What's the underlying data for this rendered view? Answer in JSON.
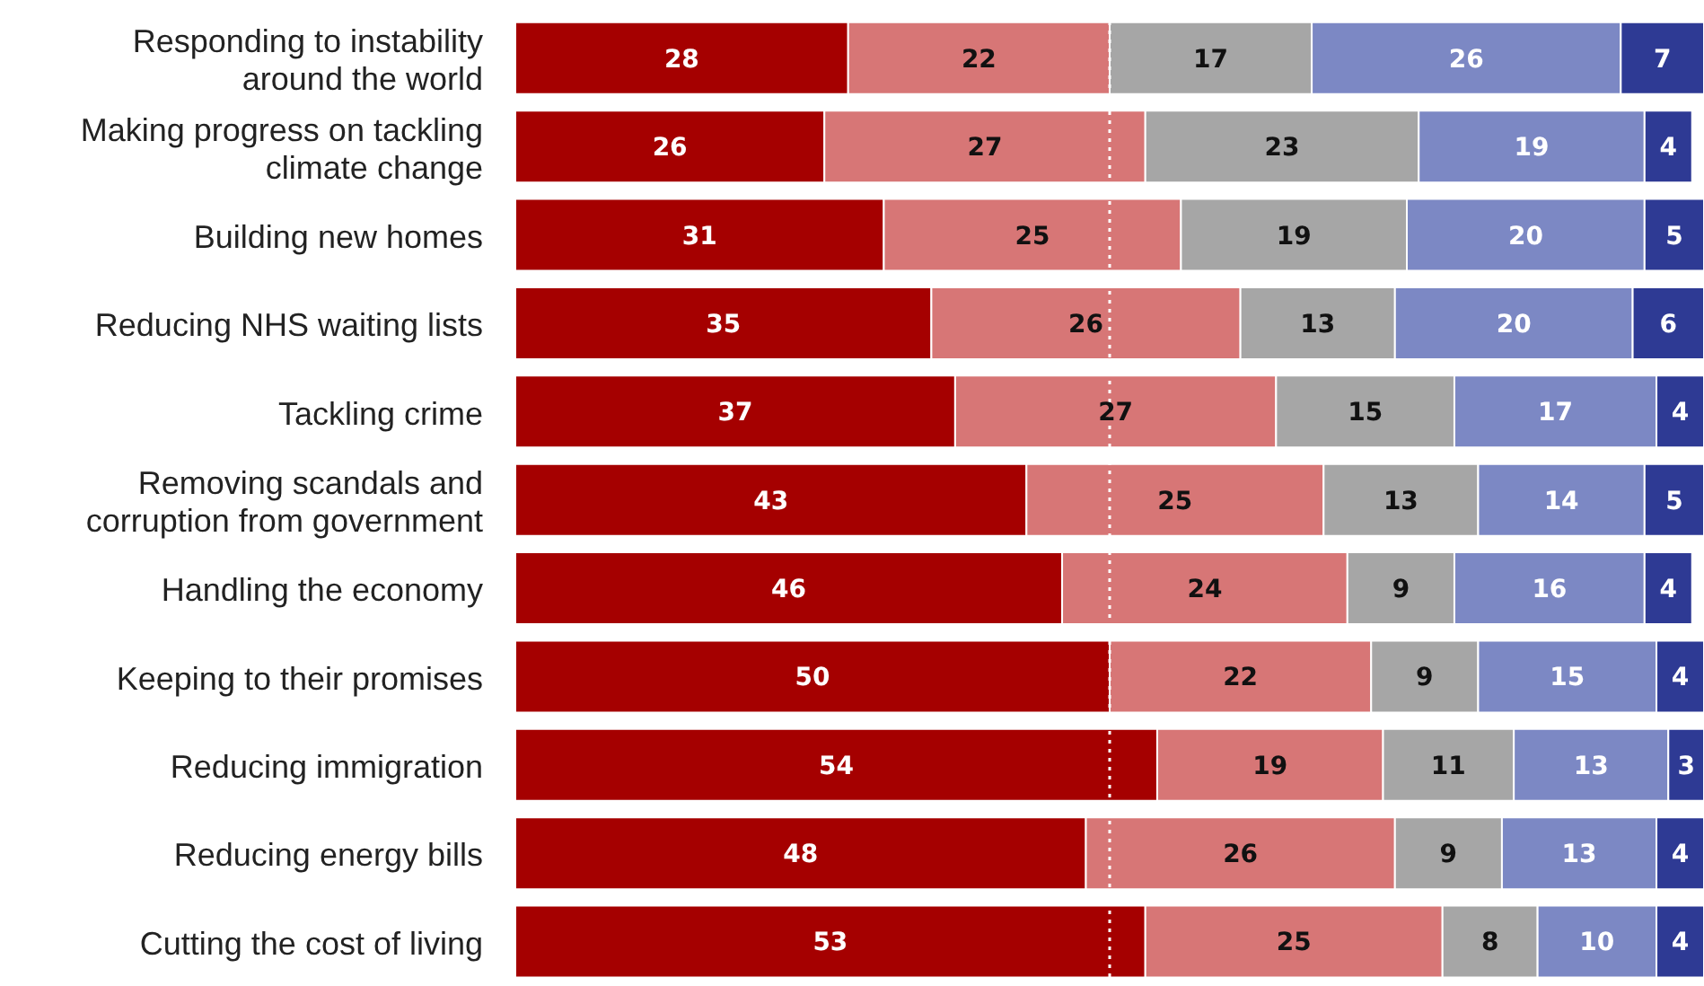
{
  "chart_data": {
    "type": "bar",
    "orientation": "horizontal",
    "stacked": true,
    "data_labels": true,
    "tick_labels": "y",
    "categories": [
      "Responding to instability around the world",
      "Making progress on tackling climate change",
      "Building new homes",
      "Reducing NHS waiting lists",
      "Tackling crime",
      "Removing scandals and corruption from government",
      "Handling the economy",
      "Keeping to their promises",
      "Reducing immigration",
      "Reducing energy bills",
      "Cutting the cost of living"
    ],
    "xlim": [
      0,
      100
    ],
    "series": [
      {
        "color": "#a50000",
        "values": [
          28,
          26,
          31,
          35,
          37,
          43,
          46,
          50,
          54,
          48,
          53
        ]
      },
      {
        "color": "#d77676",
        "values": [
          22,
          27,
          25,
          26,
          27,
          25,
          24,
          22,
          19,
          26,
          25
        ]
      },
      {
        "color": "#a6a6a6",
        "values": [
          17,
          23,
          19,
          13,
          15,
          13,
          9,
          9,
          11,
          9,
          8
        ]
      },
      {
        "color": "#7c88c4",
        "values": [
          26,
          19,
          20,
          20,
          17,
          14,
          16,
          15,
          13,
          13,
          10
        ]
      },
      {
        "color": "#2e3a94",
        "values": [
          7,
          4,
          5,
          6,
          4,
          5,
          4,
          4,
          3,
          4,
          4
        ]
      }
    ],
    "ref_lines": [
      {
        "axis": "x",
        "value": 50,
        "color": "#ffffff",
        "line_style": "dotted"
      }
    ]
  }
}
